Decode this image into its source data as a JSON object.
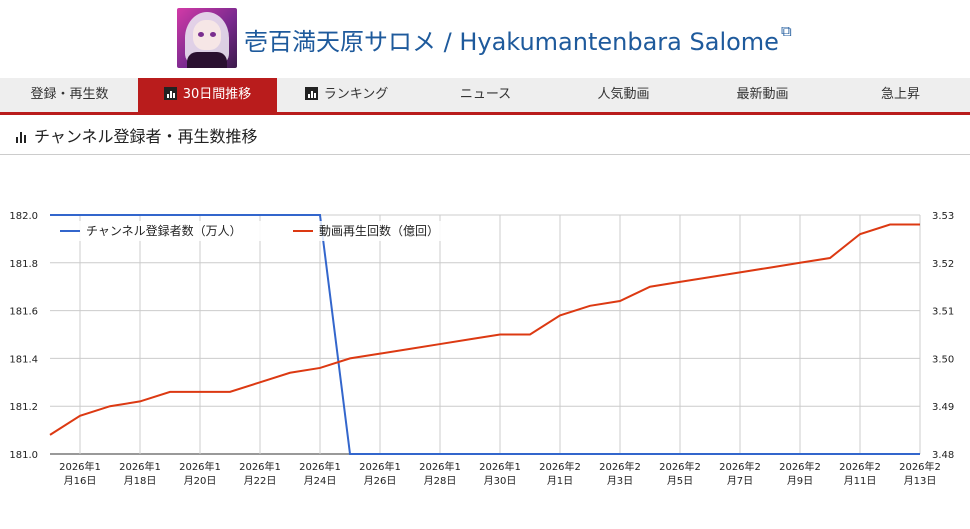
{
  "header": {
    "title": "壱百満天原サロメ / Hyakumantenbara Salome",
    "external_icon": "external-link-icon"
  },
  "tabs": [
    {
      "label": "登録・再生数",
      "active": false,
      "icon": ""
    },
    {
      "label": "30日間推移",
      "active": true,
      "icon": "bar-chart-icon"
    },
    {
      "label": "ランキング",
      "active": false,
      "icon": "bar-chart-icon"
    },
    {
      "label": "ニュース",
      "active": false,
      "icon": ""
    },
    {
      "label": "人気動画",
      "active": false,
      "icon": ""
    },
    {
      "label": "最新動画",
      "active": false,
      "icon": ""
    },
    {
      "label": "急上昇",
      "active": false,
      "icon": ""
    }
  ],
  "section": {
    "title": "チャンネル登録者・再生数推移",
    "icon": "bar-chart-icon"
  },
  "colors": {
    "accent": "#b91c1c",
    "subscribers": "#3366cc",
    "views": "#dc3912"
  },
  "chart_data": {
    "type": "line",
    "x": [
      "2026-01-15",
      "2026-01-16",
      "2026-01-17",
      "2026-01-18",
      "2026-01-19",
      "2026-01-20",
      "2026-01-21",
      "2026-01-22",
      "2026-01-23",
      "2026-01-24",
      "2026-01-25",
      "2026-01-26",
      "2026-01-27",
      "2026-01-28",
      "2026-01-29",
      "2026-01-30",
      "2026-01-31",
      "2026-02-01",
      "2026-02-02",
      "2026-02-03",
      "2026-02-04",
      "2026-02-05",
      "2026-02-06",
      "2026-02-07",
      "2026-02-08",
      "2026-02-09",
      "2026-02-10",
      "2026-02-11",
      "2026-02-12",
      "2026-02-13"
    ],
    "x_tick_labels": [
      [
        "2026年1",
        "月16日"
      ],
      [
        "2026年1",
        "月18日"
      ],
      [
        "2026年1",
        "月20日"
      ],
      [
        "2026年1",
        "月22日"
      ],
      [
        "2026年1",
        "月24日"
      ],
      [
        "2026年1",
        "月26日"
      ],
      [
        "2026年1",
        "月28日"
      ],
      [
        "2026年1",
        "月30日"
      ],
      [
        "2026年2",
        "月1日"
      ],
      [
        "2026年2",
        "月3日"
      ],
      [
        "2026年2",
        "月5日"
      ],
      [
        "2026年2",
        "月7日"
      ],
      [
        "2026年2",
        "月9日"
      ],
      [
        "2026年2",
        "月11日"
      ],
      [
        "2026年2",
        "月13日"
      ]
    ],
    "series": [
      {
        "name": "チャンネル登録者数（万人）",
        "axis": "left",
        "values": [
          182.0,
          182.0,
          182.0,
          182.0,
          182.0,
          182.0,
          182.0,
          182.0,
          182.0,
          182.0,
          181.0,
          181.0,
          181.0,
          181.0,
          181.0,
          181.0,
          181.0,
          181.0,
          181.0,
          181.0,
          181.0,
          181.0,
          181.0,
          181.0,
          181.0,
          181.0,
          181.0,
          181.0,
          181.0,
          181.0
        ]
      },
      {
        "name": "動画再生回数（億回）",
        "axis": "right",
        "values": [
          3.484,
          3.488,
          3.49,
          3.491,
          3.493,
          3.493,
          3.493,
          3.495,
          3.497,
          3.498,
          3.5,
          3.501,
          3.502,
          3.503,
          3.504,
          3.505,
          3.505,
          3.509,
          3.511,
          3.512,
          3.515,
          3.516,
          3.517,
          3.518,
          3.519,
          3.52,
          3.521,
          3.526,
          3.528,
          3.528
        ]
      }
    ],
    "y_left": {
      "ticks": [
        "182.0",
        "181.8",
        "181.6",
        "181.4",
        "181.2",
        "181.0"
      ],
      "ylim": [
        181.0,
        182.0
      ]
    },
    "y_right": {
      "ticks": [
        "3.53",
        "3.52",
        "3.51",
        "3.50",
        "3.49",
        "3.48"
      ],
      "ylim": [
        3.48,
        3.53
      ]
    },
    "grid": true,
    "legend": "top"
  }
}
